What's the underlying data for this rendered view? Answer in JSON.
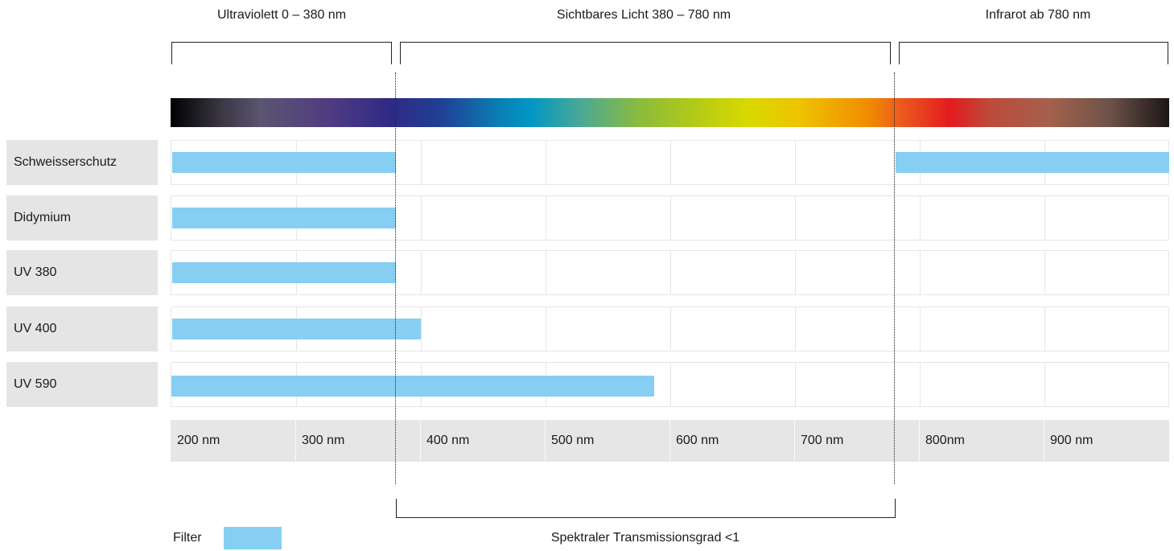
{
  "regions": [
    {
      "label": "Ultraviolett 0 – 380 nm"
    },
    {
      "label": "Sichtbares Licht 380 – 780 nm"
    },
    {
      "label": "Infrarot ab 780 nm"
    }
  ],
  "filters": [
    {
      "label": "Schweisserschutz"
    },
    {
      "label": "Didymium"
    },
    {
      "label": "UV 380"
    },
    {
      "label": "UV 400"
    },
    {
      "label": "UV 590"
    }
  ],
  "axis_ticks": [
    "200 nm",
    "300 nm",
    "400 nm",
    "500 nm",
    "600 nm",
    "700 nm",
    "800nm",
    "900 nm"
  ],
  "transmission_label": "Spektraler Transmissionsgrad <1",
  "legend": {
    "label": "Filter",
    "color": "#86cff3"
  },
  "colors": {
    "bar": "#86cff3",
    "row_label_bg": "#e5e5e5",
    "axis_bg": "#e6e6e6"
  }
}
